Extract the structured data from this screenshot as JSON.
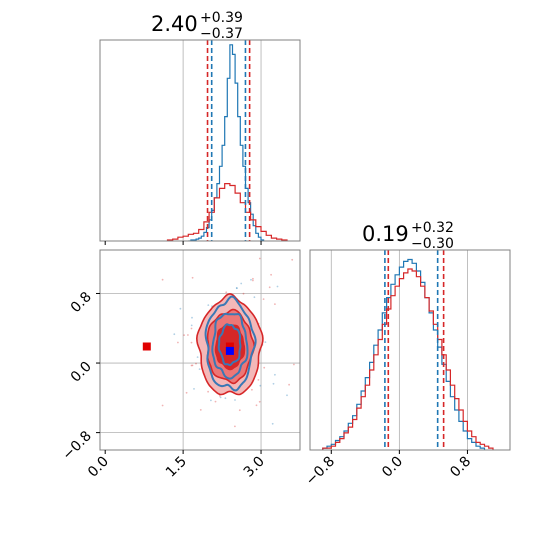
{
  "chart_data": [
    {
      "panel": "top-left",
      "type": "histogram",
      "parameter_index": 0,
      "title_value": "2.40",
      "title_upper": "+0.39",
      "title_lower": "−0.37",
      "xlim": [
        -0.1,
        3.75
      ],
      "series": [
        {
          "color": "#1f77b4",
          "bin_edges": [
            1.6,
            1.65,
            1.7,
            1.75,
            1.8,
            1.85,
            1.9,
            1.95,
            2.0,
            2.05,
            2.1,
            2.15,
            2.2,
            2.25,
            2.3,
            2.35,
            2.4,
            2.45,
            2.5,
            2.55,
            2.6,
            2.65,
            2.7,
            2.75,
            2.8,
            2.85,
            2.9,
            2.95,
            3.0,
            3.05
          ],
          "counts": [
            0,
            1,
            1,
            2,
            3,
            5,
            9,
            14,
            22,
            32,
            45,
            60,
            78,
            100,
            130,
            170,
            205,
            195,
            165,
            130,
            100,
            78,
            55,
            40,
            28,
            16,
            8,
            4,
            1
          ],
          "quantile_lines": [
            2.05,
            2.4,
            2.7
          ]
        },
        {
          "color": "#d62728",
          "bin_edges": [
            1.2,
            1.3,
            1.4,
            1.5,
            1.6,
            1.7,
            1.8,
            1.9,
            2.0,
            2.1,
            2.2,
            2.3,
            2.4,
            2.5,
            2.6,
            2.7,
            2.8,
            2.9,
            3.0,
            3.1,
            3.2,
            3.3,
            3.4,
            3.5
          ],
          "counts": [
            1,
            2,
            4,
            5,
            7,
            8,
            12,
            20,
            30,
            45,
            55,
            60,
            58,
            50,
            40,
            30,
            22,
            15,
            10,
            6,
            3,
            2,
            1
          ],
          "quantile_lines": [
            1.97,
            2.4,
            2.78
          ]
        }
      ],
      "ylim": [
        0,
        210
      ]
    },
    {
      "panel": "bottom-right",
      "type": "histogram",
      "parameter_index": 1,
      "title_value": "0.19",
      "title_upper": "+0.32",
      "title_lower": "−0.30",
      "xlim": [
        -1.05,
        1.3
      ],
      "xticks": [
        "−0.8",
        "0.0",
        "0.8"
      ],
      "series": [
        {
          "color": "#1f77b4",
          "bin_edges": [
            -0.9,
            -0.85,
            -0.8,
            -0.75,
            -0.7,
            -0.65,
            -0.6,
            -0.55,
            -0.5,
            -0.45,
            -0.4,
            -0.35,
            -0.3,
            -0.25,
            -0.2,
            -0.15,
            -0.1,
            -0.05,
            0.0,
            0.05,
            0.1,
            0.15,
            0.2,
            0.25,
            0.3,
            0.35,
            0.4,
            0.45,
            0.5,
            0.55,
            0.6,
            0.65,
            0.7,
            0.75,
            0.8,
            0.85,
            0.9,
            0.95,
            1.0
          ],
          "counts": [
            1,
            2,
            3,
            5,
            7,
            10,
            14,
            18,
            24,
            31,
            38,
            46,
            55,
            63,
            72,
            80,
            87,
            92,
            96,
            99,
            100,
            98,
            94,
            88,
            80,
            72,
            63,
            54,
            45,
            36,
            28,
            21,
            15,
            10,
            6,
            4,
            2,
            1
          ],
          "quantile_lines": [
            -0.17,
            0.19,
            0.45
          ]
        },
        {
          "color": "#d62728",
          "bin_edges": [
            -0.9,
            -0.85,
            -0.8,
            -0.75,
            -0.7,
            -0.65,
            -0.6,
            -0.55,
            -0.5,
            -0.45,
            -0.4,
            -0.35,
            -0.3,
            -0.25,
            -0.2,
            -0.15,
            -0.1,
            -0.05,
            0.0,
            0.05,
            0.1,
            0.15,
            0.2,
            0.25,
            0.3,
            0.35,
            0.4,
            0.45,
            0.5,
            0.55,
            0.6,
            0.65,
            0.7,
            0.75,
            0.8,
            0.85,
            0.9,
            0.95,
            1.0,
            1.05,
            1.1
          ],
          "counts": [
            1,
            1,
            2,
            4,
            6,
            9,
            12,
            16,
            22,
            28,
            34,
            42,
            50,
            58,
            66,
            74,
            81,
            86,
            90,
            93,
            95,
            94,
            91,
            86,
            80,
            73,
            66,
            58,
            50,
            42,
            34,
            27,
            21,
            15,
            10,
            7,
            4,
            3,
            2,
            1
          ],
          "quantile_lines": [
            -0.13,
            0.19,
            0.52
          ]
        }
      ],
      "ylim": [
        0,
        105
      ]
    },
    {
      "panel": "bottom-left",
      "type": "contour",
      "xlim": [
        -0.1,
        3.75
      ],
      "ylim": [
        -1.0,
        1.3
      ],
      "xticks": [
        "0.0",
        "1.5",
        "3.0"
      ],
      "yticks": [
        "−0.8",
        "0.0",
        "0.8"
      ],
      "series": [
        {
          "color": "#d62728",
          "center": [
            2.4,
            0.19
          ],
          "sigma": [
            0.55,
            0.36
          ],
          "levels": 3
        },
        {
          "color": "#1f77b4",
          "center": [
            2.4,
            0.19
          ],
          "sigma": [
            0.38,
            0.3
          ],
          "levels": 3
        }
      ],
      "markers": [
        {
          "color": "#e00000",
          "x": 0.8,
          "y": 0.19,
          "shape": "square"
        },
        {
          "color": "#e00000",
          "x": 2.4,
          "y": 0.19,
          "shape": "square"
        },
        {
          "color": "#0000ff",
          "x": 2.4,
          "y": 0.14,
          "shape": "square"
        }
      ]
    }
  ],
  "colors": {
    "blue": "#1f77b4",
    "red": "#d62728",
    "grid": "#b0b0b0",
    "spine": "#808080"
  }
}
